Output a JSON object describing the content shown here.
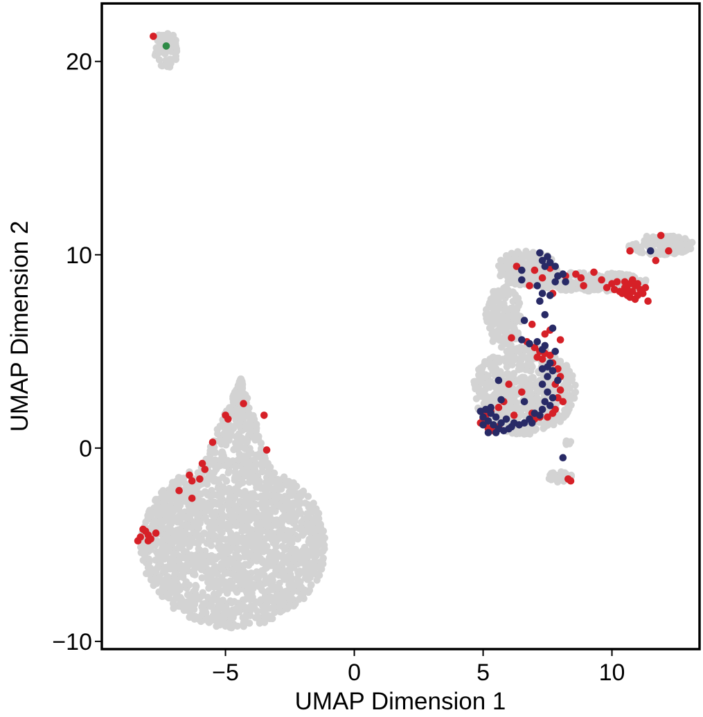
{
  "chart_data": {
    "type": "scatter",
    "xlabel": "UMAP Dimension 1",
    "ylabel": "UMAP Dimension 2",
    "xlim": [
      -9.8,
      13.4
    ],
    "ylim": [
      -10.4,
      23.0
    ],
    "xticks": [
      {
        "value": -5,
        "label": "−5"
      },
      {
        "value": 0,
        "label": "0"
      },
      {
        "value": 5,
        "label": "5"
      },
      {
        "value": 10,
        "label": "10"
      }
    ],
    "yticks": [
      {
        "value": -10,
        "label": "−10"
      },
      {
        "value": 0,
        "label": "0"
      },
      {
        "value": 10,
        "label": "10"
      },
      {
        "value": 20,
        "label": "20"
      }
    ],
    "grid": false,
    "legend": "none",
    "colors": {
      "background_cells": "#d3d3d3",
      "red": "#d62027",
      "navy": "#282a66",
      "green": "#2e8b46"
    },
    "background_clusters": [
      {
        "id": "left-big",
        "shape": "blob",
        "center": [
          -4.7,
          -5.0
        ],
        "rx": 3.6,
        "ry": 4.3,
        "count": 1700
      },
      {
        "id": "left-spike",
        "shape": "spike",
        "base": [
          -4.6,
          -1.0
        ],
        "tip": [
          -4.4,
          3.6
        ],
        "halfwidth": 1.4,
        "count": 300
      },
      {
        "id": "top-left",
        "shape": "blob",
        "center": [
          -7.3,
          20.6
        ],
        "rx": 0.45,
        "ry": 1.0,
        "count": 70
      },
      {
        "id": "right-lower",
        "shape": "blob",
        "center": [
          6.6,
          3.0
        ],
        "rx": 2.0,
        "ry": 2.3,
        "count": 560
      },
      {
        "id": "right-stem",
        "shape": "blob",
        "center": [
          5.8,
          6.8
        ],
        "rx": 0.7,
        "ry": 1.6,
        "count": 160
      },
      {
        "id": "right-upper",
        "shape": "blob",
        "center": [
          6.7,
          9.3
        ],
        "rx": 1.2,
        "ry": 0.9,
        "count": 190
      },
      {
        "id": "right-band",
        "shape": "blob",
        "center": [
          9.1,
          8.6
        ],
        "rx": 2.3,
        "ry": 0.5,
        "count": 230
      },
      {
        "id": "right-tail",
        "shape": "blob",
        "center": [
          11.9,
          10.5
        ],
        "rx": 1.3,
        "ry": 0.5,
        "count": 120
      },
      {
        "id": "small-bottom",
        "shape": "blob",
        "center": [
          8.0,
          -1.5
        ],
        "rx": 0.45,
        "ry": 0.35,
        "count": 40
      },
      {
        "id": "small-dot",
        "shape": "blob",
        "center": [
          8.3,
          0.3
        ],
        "rx": 0.12,
        "ry": 0.18,
        "count": 8
      }
    ],
    "series": [
      {
        "color": "red",
        "points": [
          [
            -7.8,
            21.3
          ],
          [
            -4.3,
            2.3
          ],
          [
            -5.0,
            1.7
          ],
          [
            -4.9,
            1.5
          ],
          [
            -3.5,
            1.7
          ],
          [
            -3.4,
            -0.1
          ],
          [
            -5.5,
            0.3
          ],
          [
            -5.9,
            -0.8
          ],
          [
            -6.4,
            -1.4
          ],
          [
            -6.3,
            -1.7
          ],
          [
            -6.0,
            -1.6
          ],
          [
            -5.8,
            -1.1
          ],
          [
            -6.8,
            -2.2
          ],
          [
            -6.3,
            -2.6
          ],
          [
            -8.2,
            -4.2
          ],
          [
            -8.0,
            -4.5
          ],
          [
            -8.3,
            -4.6
          ],
          [
            -8.0,
            -4.8
          ],
          [
            -8.4,
            -4.8
          ],
          [
            -8.1,
            -4.3
          ],
          [
            -7.9,
            -4.7
          ],
          [
            -7.7,
            -4.4
          ],
          [
            6.3,
            9.4
          ],
          [
            7.6,
            9.3
          ],
          [
            7.0,
            9.2
          ],
          [
            7.3,
            8.8
          ],
          [
            6.8,
            8.4
          ],
          [
            7.7,
            8.0
          ],
          [
            8.2,
            8.9
          ],
          [
            8.6,
            9.0
          ],
          [
            8.8,
            8.8
          ],
          [
            8.9,
            8.4
          ],
          [
            9.3,
            9.1
          ],
          [
            9.6,
            8.7
          ],
          [
            9.8,
            8.3
          ],
          [
            10.0,
            8.5
          ],
          [
            10.2,
            8.6
          ],
          [
            10.3,
            8.1
          ],
          [
            10.5,
            8.3
          ],
          [
            10.6,
            7.9
          ],
          [
            10.7,
            8.5
          ],
          [
            10.8,
            8.1
          ],
          [
            10.9,
            8.4
          ],
          [
            11.0,
            7.9
          ],
          [
            11.1,
            8.2
          ],
          [
            10.4,
            8.0
          ],
          [
            10.6,
            8.2
          ],
          [
            10.8,
            8.7
          ],
          [
            11.0,
            8.5
          ],
          [
            10.5,
            8.6
          ],
          [
            10.7,
            7.8
          ],
          [
            11.2,
            8.0
          ],
          [
            11.3,
            8.3
          ],
          [
            11.4,
            7.6
          ],
          [
            10.1,
            8.2
          ],
          [
            10.9,
            7.7
          ],
          [
            11.7,
            9.7
          ],
          [
            11.9,
            11.0
          ],
          [
            10.7,
            10.2
          ],
          [
            12.2,
            10.2
          ],
          [
            6.9,
            6.4
          ],
          [
            7.6,
            6.1
          ],
          [
            7.4,
            5.9
          ],
          [
            8.0,
            5.6
          ],
          [
            6.7,
            5.5
          ],
          [
            7.0,
            5.2
          ],
          [
            7.2,
            5.0
          ],
          [
            7.4,
            4.9
          ],
          [
            7.6,
            4.8
          ],
          [
            7.1,
            4.7
          ],
          [
            7.3,
            4.6
          ],
          [
            7.7,
            4.4
          ],
          [
            7.9,
            4.1
          ],
          [
            8.0,
            3.7
          ],
          [
            7.8,
            3.3
          ],
          [
            8.0,
            3.0
          ],
          [
            7.9,
            2.6
          ],
          [
            8.1,
            2.4
          ],
          [
            7.8,
            2.0
          ],
          [
            7.7,
            1.8
          ],
          [
            7.5,
            1.6
          ],
          [
            7.2,
            1.6
          ],
          [
            7.0,
            1.5
          ],
          [
            6.9,
            1.8
          ],
          [
            6.5,
            2.9
          ],
          [
            6.0,
            3.3
          ],
          [
            5.8,
            2.4
          ],
          [
            5.6,
            2.1
          ],
          [
            5.3,
            1.9
          ],
          [
            5.1,
            1.7
          ],
          [
            5.0,
            1.5
          ],
          [
            4.9,
            1.3
          ],
          [
            5.1,
            1.2
          ],
          [
            5.2,
            1.0
          ],
          [
            5.4,
            0.9
          ],
          [
            5.6,
            1.1
          ],
          [
            6.2,
            1.7
          ],
          [
            8.4,
            -1.7
          ],
          [
            8.3,
            -1.6
          ],
          [
            6.1,
            5.7
          ]
        ]
      },
      {
        "color": "navy",
        "points": [
          [
            7.2,
            10.1
          ],
          [
            7.5,
            9.9
          ],
          [
            7.3,
            9.7
          ],
          [
            7.6,
            9.6
          ],
          [
            7.8,
            9.4
          ],
          [
            7.4,
            9.4
          ],
          [
            6.5,
            9.2
          ],
          [
            8.1,
            9.0
          ],
          [
            7.9,
            8.9
          ],
          [
            8.2,
            8.6
          ],
          [
            7.8,
            8.6
          ],
          [
            7.1,
            8.4
          ],
          [
            7.3,
            8.0
          ],
          [
            7.6,
            7.9
          ],
          [
            7.2,
            7.6
          ],
          [
            6.5,
            8.7
          ],
          [
            11.5,
            10.2
          ],
          [
            7.4,
            6.9
          ],
          [
            6.6,
            6.6
          ],
          [
            7.7,
            6.2
          ],
          [
            6.5,
            5.6
          ],
          [
            6.8,
            5.4
          ],
          [
            7.1,
            5.5
          ],
          [
            7.4,
            5.3
          ],
          [
            7.3,
            5.1
          ],
          [
            7.8,
            5.0
          ],
          [
            7.6,
            4.4
          ],
          [
            7.5,
            4.2
          ],
          [
            7.3,
            4.1
          ],
          [
            7.7,
            4.0
          ],
          [
            7.5,
            3.7
          ],
          [
            7.9,
            3.5
          ],
          [
            7.3,
            3.3
          ],
          [
            7.5,
            2.9
          ],
          [
            7.7,
            2.6
          ],
          [
            7.4,
            2.4
          ],
          [
            7.6,
            2.2
          ],
          [
            7.3,
            2.0
          ],
          [
            7.0,
            1.8
          ],
          [
            6.8,
            1.5
          ],
          [
            6.6,
            1.3
          ],
          [
            6.4,
            1.2
          ],
          [
            6.2,
            1.3
          ],
          [
            6.0,
            1.0
          ],
          [
            5.8,
            0.9
          ],
          [
            5.6,
            1.0
          ],
          [
            5.4,
            1.2
          ],
          [
            5.2,
            1.4
          ],
          [
            5.0,
            1.6
          ],
          [
            4.9,
            1.9
          ],
          [
            5.1,
            2.0
          ],
          [
            5.3,
            1.8
          ],
          [
            5.5,
            1.6
          ],
          [
            5.7,
            1.3
          ],
          [
            5.9,
            1.5
          ],
          [
            6.1,
            1.1
          ],
          [
            5.3,
            2.1
          ],
          [
            5.0,
            1.2
          ],
          [
            5.2,
            0.8
          ],
          [
            5.5,
            0.8
          ],
          [
            5.7,
            2.5
          ],
          [
            5.6,
            3.5
          ],
          [
            6.6,
            2.4
          ],
          [
            6.9,
            1.3
          ],
          [
            7.2,
            1.7
          ],
          [
            8.1,
            -0.5
          ]
        ]
      },
      {
        "color": "green",
        "points": [
          [
            -7.3,
            20.8
          ]
        ]
      }
    ]
  }
}
